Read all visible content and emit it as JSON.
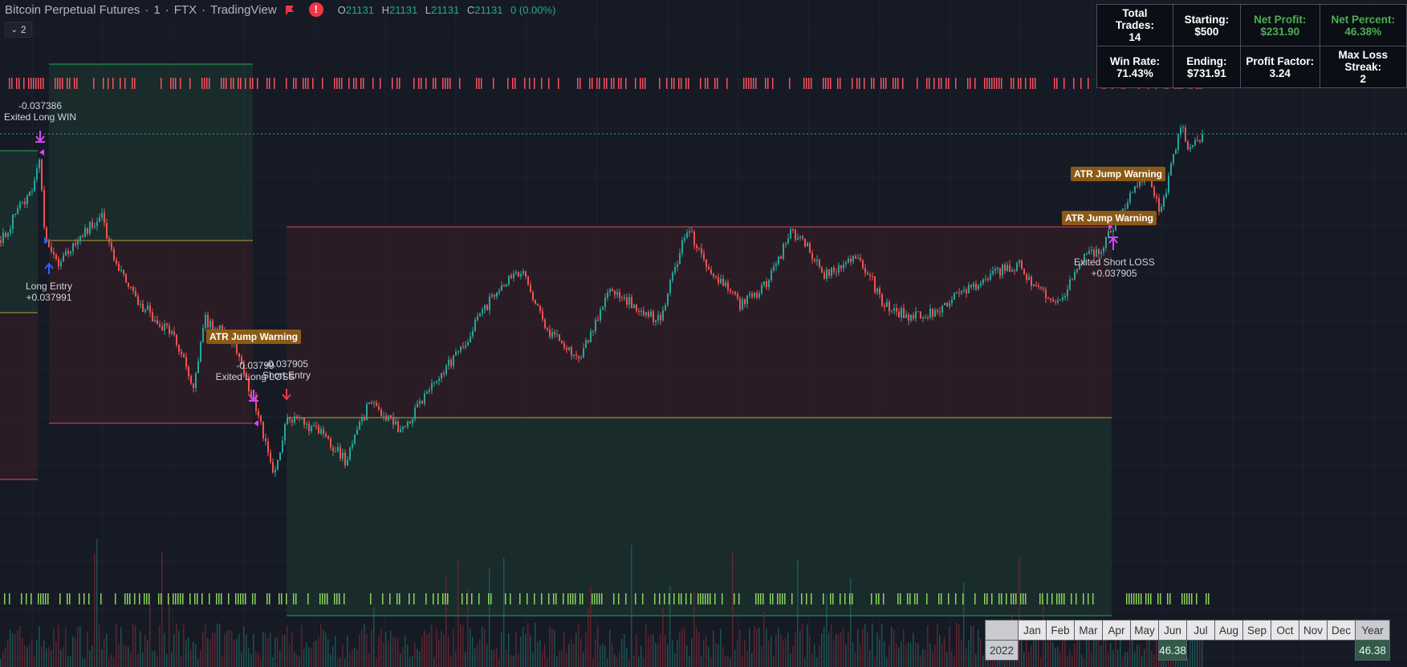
{
  "legend": {
    "symbol": "Bitcoin Perpetual Futures",
    "interval": "1",
    "exchange": "FTX",
    "provider": "TradingView",
    "alert_glyph": "!",
    "open_label": "O",
    "open": "21131",
    "high_label": "H",
    "high": "21131",
    "low_label": "L",
    "low": "21131",
    "close_label": "C",
    "close": "21131",
    "change": "0 (0.00%)",
    "collapse": "2",
    "flag_icon": "flag-icon"
  },
  "stats": {
    "total_trades_label": "Total Trades:",
    "total_trades": "14",
    "starting_label": "Starting:",
    "starting": "$500",
    "net_profit_label": "Net Profit:",
    "net_profit": "$231.90",
    "net_percent_label": "Net Percent:",
    "net_percent": "46.38%",
    "win_rate_label": "Win Rate:",
    "win_rate": "71.43%",
    "ending_label": "Ending:",
    "ending": "$731.91",
    "profit_factor_label": "Profit Factor:",
    "profit_factor": "3.24",
    "max_loss_label": "Max Loss Streak:",
    "max_loss": "2"
  },
  "monthly": {
    "months": [
      "Jan",
      "Feb",
      "Mar",
      "Apr",
      "May",
      "Jun",
      "Jul",
      "Aug",
      "Sep",
      "Oct",
      "Nov",
      "Dec"
    ],
    "year_header": "Year",
    "year": "2022",
    "jun_value": "46.38",
    "year_value": "46.38"
  },
  "annotations": {
    "exit_long_win_value": "-0.037386",
    "exit_long_win": "Exited Long WIN",
    "long_entry": "Long Entry",
    "long_entry_value": "+0.037991",
    "exit_long_loss_value": "-0.03799",
    "exit_long_loss": "Exited Long LOSS",
    "short_entry_value": "-0.037905",
    "short_entry": "Short Entry",
    "exit_short_loss": "Exited Short LOSS",
    "exit_short_loss_value": "+0.037905",
    "atr_warning": "ATR Jump Warning"
  },
  "colors": {
    "background": "#161a25",
    "up": "#26a69a",
    "down": "#ef5350",
    "profit_zone": "#1f3a30",
    "loss_zone": "#3a1f26"
  }
}
